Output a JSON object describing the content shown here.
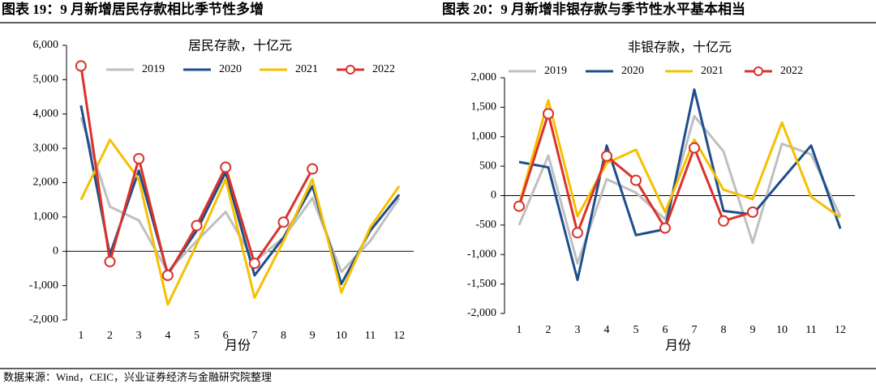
{
  "chart_data": [
    {
      "type": "line",
      "title": "图表 19：9 月新增居民存款相比季节性多增",
      "subtitle": "居民存款，十亿元",
      "xlabel": "月份",
      "categories": [
        "1",
        "2",
        "3",
        "4",
        "5",
        "6",
        "7",
        "8",
        "9",
        "10",
        "11",
        "12"
      ],
      "ylim": [
        -2000,
        6000
      ],
      "yticks": [
        {
          "value": -2000,
          "label": "-2,000"
        },
        {
          "value": -1000,
          "label": "-1,000"
        },
        0,
        {
          "value": 1000,
          "label": "1,000"
        },
        {
          "value": 2000,
          "label": "2,000"
        },
        {
          "value": 3000,
          "label": "3,000"
        },
        {
          "value": 4000,
          "label": "4,000"
        },
        {
          "value": 5000,
          "label": "5,000"
        },
        {
          "value": 6000,
          "label": "6,000"
        }
      ],
      "series": [
        {
          "name": "2019",
          "color": "#bfbfbf",
          "values": [
            3900,
            1300,
            900,
            -600,
            300,
            1150,
            -300,
            400,
            1550,
            -600,
            300,
            1550
          ]
        },
        {
          "name": "2020",
          "color": "#1f4e8c",
          "values": [
            4250,
            -100,
            2350,
            -650,
            600,
            2300,
            -700,
            400,
            1900,
            -950,
            600,
            1650
          ]
        },
        {
          "name": "2021",
          "color": "#f5c000",
          "values": [
            1500,
            3250,
            2100,
            -1550,
            200,
            2100,
            -1350,
            300,
            2100,
            -1200,
            700,
            1900
          ]
        },
        {
          "name": "2022",
          "color": "#d9332b",
          "marker": "circle",
          "values": [
            5400,
            -300,
            2700,
            -700,
            750,
            2450,
            -350,
            850,
            2400,
            null,
            null,
            null
          ]
        }
      ]
    },
    {
      "type": "line",
      "title": "图表 20：9 月新增非银存款与季节性水平基本相当",
      "subtitle": "非银存款，十亿元",
      "xlabel": "月份",
      "categories": [
        "1",
        "2",
        "3",
        "4",
        "5",
        "6",
        "7",
        "8",
        "9",
        "10",
        "11",
        "12"
      ],
      "ylim": [
        -2000,
        2000
      ],
      "yticks": [
        {
          "value": -2000,
          "label": "-2,000"
        },
        {
          "value": -1500,
          "label": "-1,500"
        },
        {
          "value": -1000,
          "label": "-1,000"
        },
        -500,
        0,
        500,
        {
          "value": 1000,
          "label": "1,000"
        },
        {
          "value": 1500,
          "label": "1,500"
        },
        {
          "value": 2000,
          "label": "2,000"
        }
      ],
      "series": [
        {
          "name": "2019",
          "color": "#bfbfbf",
          "values": [
            -500,
            680,
            -1150,
            280,
            50,
            -400,
            1350,
            750,
            -800,
            880,
            700,
            -350
          ]
        },
        {
          "name": "2020",
          "color": "#1f4e8c",
          "values": [
            570,
            480,
            -1430,
            850,
            -670,
            -570,
            1800,
            -260,
            -320,
            270,
            850,
            -560
          ]
        },
        {
          "name": "2021",
          "color": "#f5c000",
          "values": [
            -150,
            1620,
            -350,
            550,
            780,
            -280,
            950,
            100,
            -60,
            1240,
            -20,
            -370
          ]
        },
        {
          "name": "2022",
          "color": "#d9332b",
          "marker": "circle",
          "values": [
            -180,
            1390,
            -630,
            670,
            260,
            -550,
            810,
            -430,
            -280,
            null,
            null,
            null
          ]
        }
      ]
    }
  ],
  "source": "数据来源：Wind，CEIC，兴业证券经济与金融研究院整理"
}
